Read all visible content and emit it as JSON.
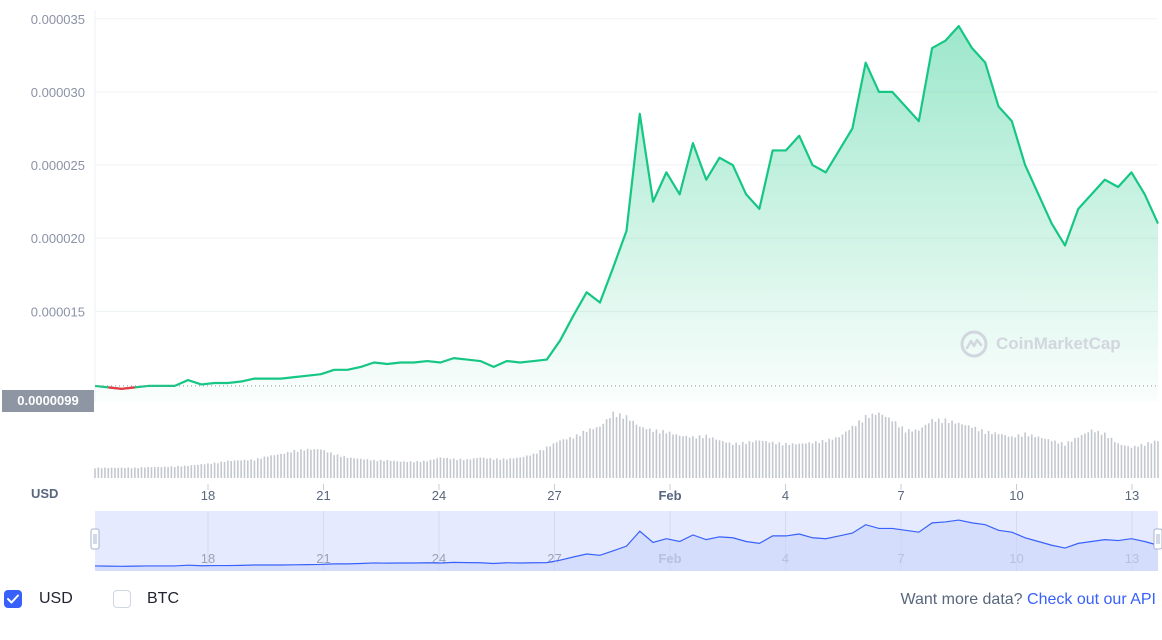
{
  "chart_data": {
    "type": "area",
    "title": "",
    "currency": "USD",
    "y_axis": {
      "ticks": [
        "0.000015",
        "0.000020",
        "0.000025",
        "0.000030",
        "0.000035"
      ],
      "min": 8.8e-06,
      "max": 3.56e-05
    },
    "x_axis": {
      "labels": [
        "18",
        "21",
        "24",
        "27",
        "Feb",
        "4",
        "7",
        "10",
        "13"
      ],
      "bold_labels": [
        "Feb"
      ]
    },
    "current_price": {
      "label": "0.0000099",
      "value": 9.9e-06
    },
    "series": [
      {
        "values": [
          9.9e-06,
          9.8e-06,
          9.7e-06,
          9.8e-06,
          9.9e-06,
          9.9e-06,
          9.9e-06,
          1.03e-05,
          1e-05,
          1.01e-05,
          1.01e-05,
          1.02e-05,
          1.04e-05,
          1.04e-05,
          1.04e-05,
          1.05e-05,
          1.06e-05,
          1.07e-05,
          1.1e-05,
          1.1e-05,
          1.12e-05,
          1.15e-05,
          1.14e-05,
          1.15e-05,
          1.15e-05,
          1.16e-05,
          1.15e-05,
          1.18e-05,
          1.17e-05,
          1.16e-05,
          1.12e-05,
          1.16e-05,
          1.15e-05,
          1.16e-05,
          1.17e-05,
          1.3e-05,
          1.47e-05,
          1.63e-05,
          1.56e-05,
          1.8e-05,
          2.05e-05,
          2.85e-05,
          2.25e-05,
          2.45e-05,
          2.3e-05,
          2.65e-05,
          2.4e-05,
          2.55e-05,
          2.5e-05,
          2.3e-05,
          2.2e-05,
          2.6e-05,
          2.6e-05,
          2.7e-05,
          2.5e-05,
          2.45e-05,
          2.6e-05,
          2.75e-05,
          3.2e-05,
          3e-05,
          3e-05,
          2.9e-05,
          2.8e-05,
          3.3e-05,
          3.35e-05,
          3.45e-05,
          3.3e-05,
          3.2e-05,
          2.9e-05,
          2.8e-05,
          2.5e-05,
          2.3e-05,
          2.1e-05,
          1.95e-05,
          2.2e-05,
          2.3e-05,
          2.4e-05,
          2.35e-05,
          2.45e-05,
          2.3e-05,
          2.1e-05
        ]
      }
    ],
    "down_segment": {
      "start_index": 1,
      "end_index": 3,
      "color": "#ea3943"
    },
    "volume": [
      0.15,
      0.15,
      0.15,
      0.15,
      0.16,
      0.16,
      0.17,
      0.18,
      0.2,
      0.22,
      0.25,
      0.26,
      0.27,
      0.32,
      0.35,
      0.4,
      0.42,
      0.42,
      0.35,
      0.3,
      0.28,
      0.26,
      0.26,
      0.24,
      0.24,
      0.25,
      0.3,
      0.28,
      0.27,
      0.3,
      0.28,
      0.28,
      0.3,
      0.35,
      0.45,
      0.55,
      0.6,
      0.7,
      0.75,
      0.95,
      0.9,
      0.75,
      0.7,
      0.68,
      0.62,
      0.6,
      0.62,
      0.55,
      0.5,
      0.52,
      0.55,
      0.52,
      0.5,
      0.5,
      0.52,
      0.55,
      0.6,
      0.75,
      0.9,
      0.95,
      0.85,
      0.7,
      0.7,
      0.85,
      0.85,
      0.8,
      0.75,
      0.68,
      0.65,
      0.6,
      0.65,
      0.6,
      0.55,
      0.5,
      0.6,
      0.7,
      0.65,
      0.5,
      0.45,
      0.5,
      0.55
    ],
    "navigator": {
      "labels": [
        "18",
        "21",
        "24",
        "27",
        "Feb",
        "4",
        "7",
        "10",
        "13"
      ],
      "bold_labels": [
        "Feb"
      ]
    },
    "colors": {
      "line": "#16c784",
      "line_down": "#ea3943",
      "area_top": "#16c784",
      "volume": "#c3c7ce",
      "navigator_line": "#3861fb",
      "navigator_fill": "#e5eaff"
    }
  },
  "watermark": "CoinMarketCap",
  "footer": {
    "usd_label": "USD",
    "usd_checked": true,
    "btc_label": "BTC",
    "btc_checked": false,
    "more_prefix": "Want more data?",
    "api_link": "Check out our API"
  }
}
